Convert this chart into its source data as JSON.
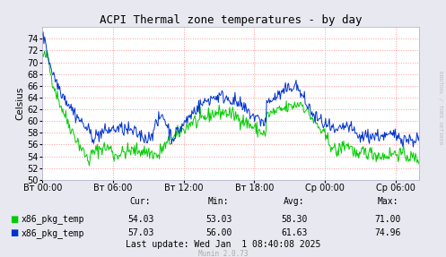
{
  "title": "ACPI Thermal zone temperatures - by day",
  "ylabel": "Celsius",
  "ylim": [
    50,
    76
  ],
  "yticks": [
    50,
    52,
    54,
    56,
    58,
    60,
    62,
    64,
    66,
    68,
    70,
    72,
    74
  ],
  "xtick_labels": [
    "Вт 00:00",
    "Вт 06:00",
    "Вт 12:00",
    "Вт 18:00",
    "Ср 00:00",
    "Ср 06:00"
  ],
  "bg_color": "#e8e8f0",
  "plot_bg_color": "#ffffff",
  "grid_color": "#ff9999",
  "green_color": "#00cc00",
  "blue_color": "#0033cc",
  "legend_green": "x86_pkg_temp",
  "legend_blue": "x86_pkg_temp",
  "stats_cur_green": "54.03",
  "stats_min_green": "53.03",
  "stats_avg_green": "58.30",
  "stats_max_green": "71.00",
  "stats_cur_blue": "57.03",
  "stats_min_blue": "56.00",
  "stats_avg_blue": "61.63",
  "stats_max_blue": "74.96",
  "last_update": "Last update: Wed Jan  1 08:40:08 2025",
  "munin_version": "Munin 2.0.73",
  "rrdtool_text": "RRDTOOL / TOBI OETIKER",
  "title_fontsize": 9,
  "axis_fontsize": 7,
  "stats_fontsize": 7
}
